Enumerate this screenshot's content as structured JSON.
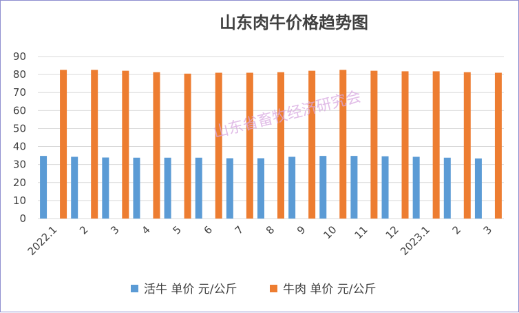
{
  "chart_data": {
    "type": "bar",
    "title": "山东肉牛价格趋势图",
    "categories": [
      "2022.1",
      "2",
      "3",
      "4",
      "5",
      "6",
      "7",
      "8",
      "9",
      "10",
      "11",
      "12",
      "2023.1",
      "2",
      "3"
    ],
    "series": [
      {
        "name": "活牛 单价 元/公斤",
        "color": "#5b9bd5",
        "values": [
          34.8,
          34.3,
          33.9,
          33.8,
          33.8,
          33.8,
          33.5,
          33.5,
          34.3,
          34.8,
          34.8,
          34.6,
          34.3,
          33.8,
          33.4
        ]
      },
      {
        "name": "牛肉 单价 元/公斤",
        "color": "#ed7d31",
        "values": [
          82.6,
          82.6,
          82.1,
          81.3,
          80.5,
          81.0,
          81.0,
          81.3,
          82.1,
          82.6,
          82.1,
          81.8,
          81.8,
          81.3,
          81.0
        ]
      }
    ],
    "ylim": [
      0,
      90
    ],
    "yticks": [
      0,
      10,
      20,
      30,
      40,
      50,
      60,
      70,
      80,
      90
    ],
    "grid": true,
    "legend_position": "bottom",
    "watermark": "山东省畜牧经济研究会"
  }
}
